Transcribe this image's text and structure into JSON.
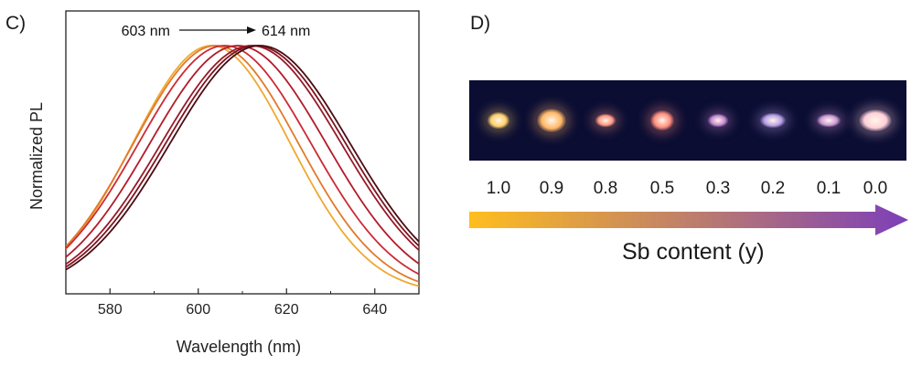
{
  "panel_c": {
    "label": "C)"
  },
  "panel_d": {
    "label": "D)"
  },
  "chart_data": {
    "type": "line",
    "xlabel": "Wavelength (nm)",
    "ylabel": "Normalized PL",
    "xlim": [
      570,
      650
    ],
    "xticks": [
      580,
      600,
      620,
      640
    ],
    "grid": false,
    "annotation": {
      "from_label": "603 nm",
      "to_label": "614 nm",
      "from_x": 603,
      "to_x": 614
    },
    "series": [
      {
        "color": "#f0a830",
        "peak": 603,
        "fwhm": 42,
        "x": [
          570,
          580,
          590,
          600,
          603,
          610,
          620,
          630,
          640,
          650
        ],
        "values": [
          0.03,
          0.34,
          0.75,
          0.99,
          1.0,
          0.92,
          0.55,
          0.16,
          0.02,
          0.0
        ]
      },
      {
        "color": "#e07a2a",
        "peak": 604,
        "fwhm": 44,
        "x": [
          570,
          580,
          590,
          600,
          604,
          610,
          620,
          630,
          640,
          650
        ],
        "values": [
          0.03,
          0.31,
          0.72,
          0.98,
          1.0,
          0.94,
          0.58,
          0.19,
          0.03,
          0.0
        ]
      },
      {
        "color": "#cc2a35",
        "peak": 606,
        "fwhm": 46,
        "x": [
          570,
          580,
          590,
          600,
          606,
          610,
          620,
          630,
          640,
          650
        ],
        "values": [
          0.02,
          0.24,
          0.64,
          0.95,
          1.0,
          0.97,
          0.66,
          0.26,
          0.05,
          0.0
        ]
      },
      {
        "color": "#b21b2a",
        "peak": 609,
        "fwhm": 47,
        "x": [
          570,
          580,
          590,
          600,
          609,
          610,
          620,
          630,
          640,
          650
        ],
        "values": [
          0.01,
          0.17,
          0.54,
          0.89,
          1.0,
          1.0,
          0.75,
          0.35,
          0.09,
          0.01
        ]
      },
      {
        "color": "#981a28",
        "peak": 612,
        "fwhm": 48,
        "x": [
          570,
          580,
          590,
          600,
          610,
          612,
          620,
          630,
          640,
          650
        ],
        "values": [
          0.01,
          0.12,
          0.45,
          0.82,
          1.0,
          1.0,
          0.83,
          0.44,
          0.13,
          0.02
        ]
      },
      {
        "color": "#7c1420",
        "peak": 613,
        "fwhm": 48,
        "x": [
          570,
          580,
          590,
          600,
          610,
          613,
          620,
          630,
          640,
          650
        ],
        "values": [
          0.01,
          0.1,
          0.41,
          0.78,
          0.99,
          1.0,
          0.86,
          0.47,
          0.15,
          0.03
        ]
      },
      {
        "color": "#4a0c12",
        "peak": 614,
        "fwhm": 48,
        "x": [
          570,
          580,
          590,
          600,
          610,
          614,
          620,
          630,
          640,
          650
        ],
        "values": [
          0.01,
          0.09,
          0.38,
          0.76,
          0.98,
          1.0,
          0.88,
          0.5,
          0.17,
          0.03
        ]
      }
    ]
  },
  "samples": {
    "values": [
      "1.0",
      "0.9",
      "0.8",
      "0.5",
      "0.3",
      "0.2",
      "0.1",
      "0.0"
    ],
    "glow_colors": [
      "#ffd06a",
      "#ffb766",
      "#ff9a84",
      "#ff8d7c",
      "#c78ad0",
      "#b9a0e6",
      "#cf9bd6",
      "#ffd0d8"
    ]
  },
  "arrow": {
    "label": "Sb content (y)",
    "start_color": "#ffbe1e",
    "end_color": "#7d3fb8"
  }
}
